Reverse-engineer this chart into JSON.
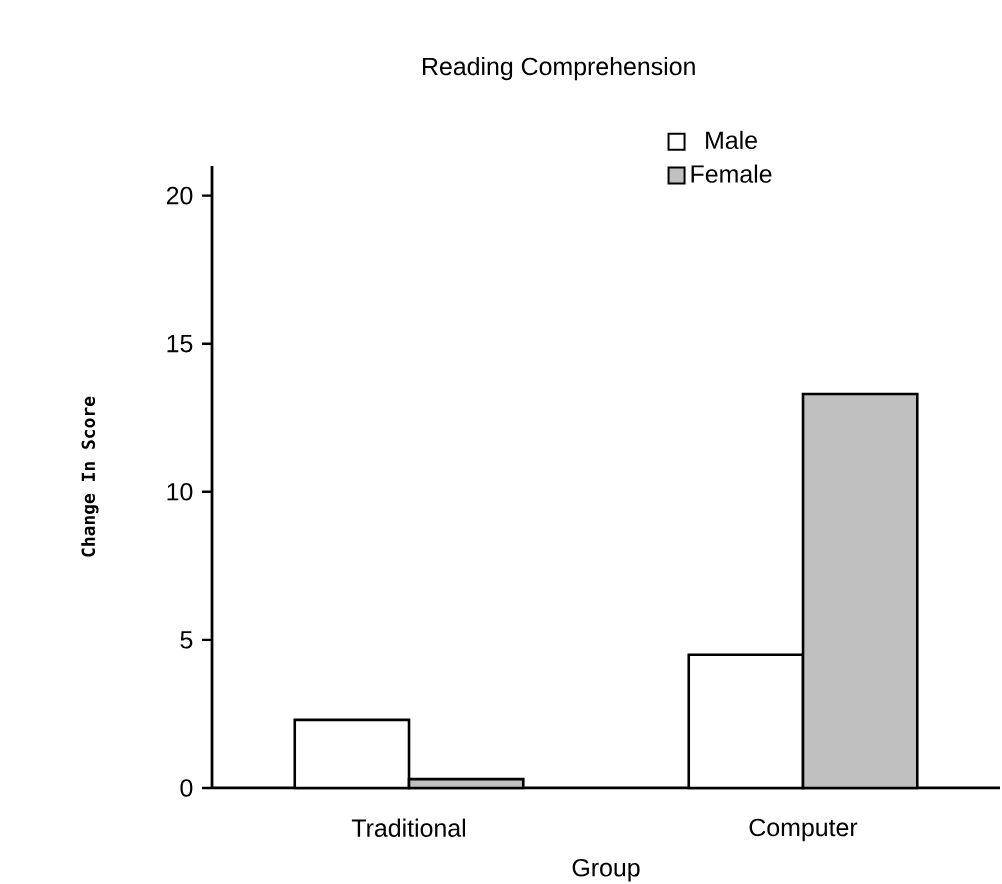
{
  "chart_data": {
    "type": "bar",
    "title": "Reading Comprehension",
    "xlabel": "Group",
    "ylabel": "Change In Score",
    "categories": [
      "Traditional",
      "Computer"
    ],
    "series": [
      {
        "name": "Male",
        "color": "#ffffff",
        "values": [
          2.3,
          4.5
        ]
      },
      {
        "name": "Female",
        "color": "#c0c0c0",
        "values": [
          0.3,
          13.3
        ]
      }
    ],
    "ylim": [
      0,
      21
    ],
    "yticks": [
      0,
      5,
      10,
      15,
      20
    ],
    "legend": "top right",
    "grid": false
  }
}
